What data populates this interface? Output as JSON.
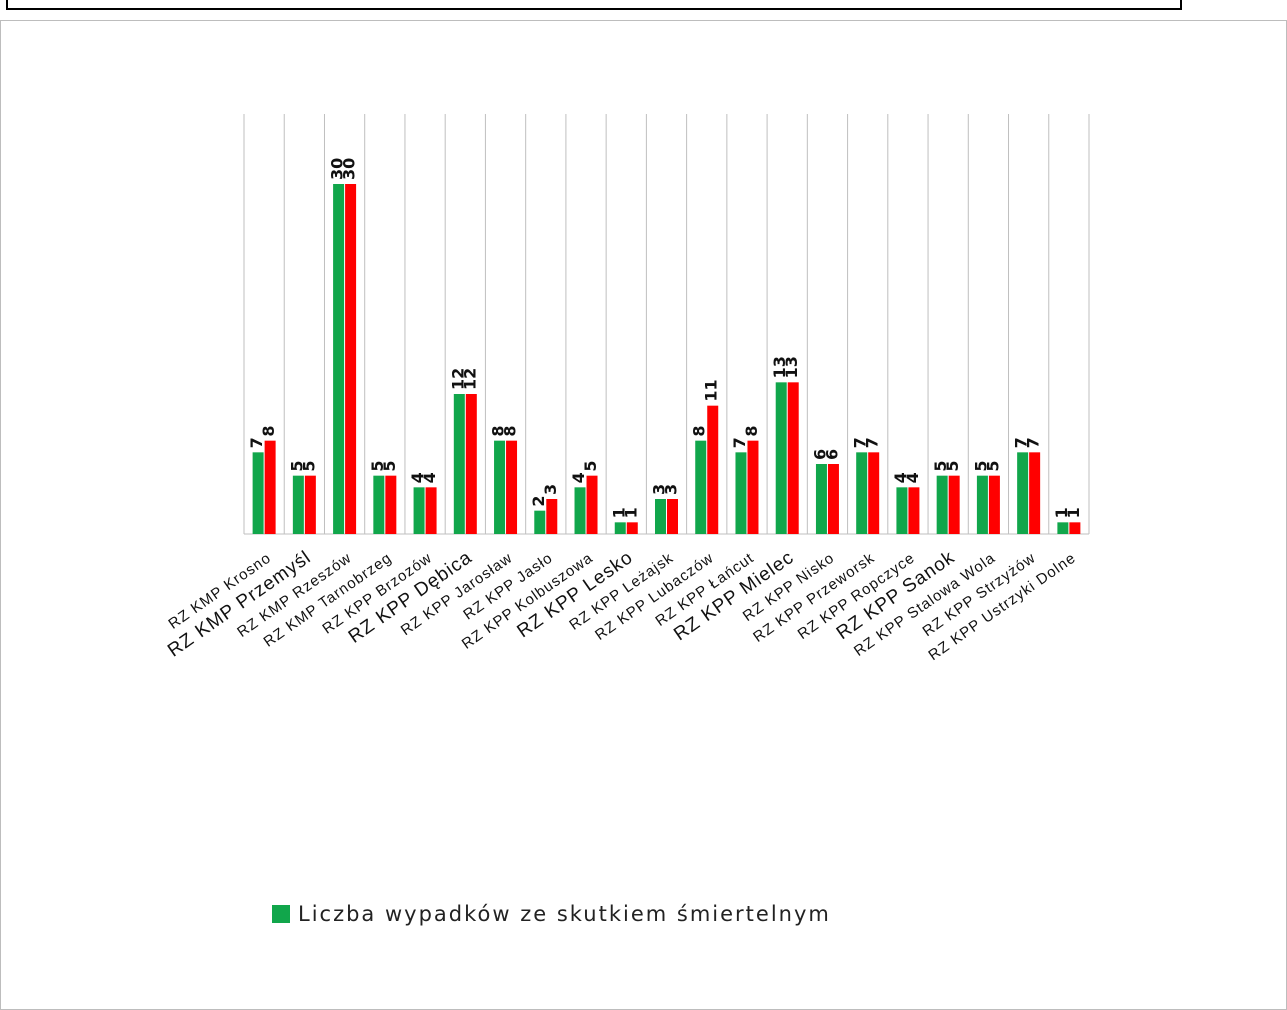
{
  "colors": {
    "series1": "#11a64b",
    "series2": "#ff0000",
    "grid": "#bfbfbf",
    "text": "#111111"
  },
  "chart_data": {
    "type": "bar",
    "title": "",
    "categories": [
      "RZ KMP Krosno",
      "RZ KMP Przemyśl",
      "RZ KMP Rzeszów",
      "RZ KMP Tarnobrzeg",
      "RZ KPP Brzozów",
      "RZ KPP Dębica",
      "RZ KPP Jarosław",
      "RZ KPP Jasło",
      "RZ KPP Kolbuszowa",
      "RZ KPP Lesko",
      "RZ KPP Leżajsk",
      "RZ KPP Lubaczów",
      "RZ KPP Łańcut",
      "RZ KPP Mielec",
      "RZ KPP Nisko",
      "RZ KPP Przeworsk",
      "RZ KPP Ropczyce",
      "RZ KPP Sanok",
      "RZ KPP Stalowa Wola",
      "RZ KPP Strzyżów",
      "RZ KPP Ustrzyki Dolne"
    ],
    "series": [
      {
        "name": "Liczba wypadków ze skutkiem śmiertelnym",
        "values": [
          7,
          5,
          30,
          5,
          4,
          12,
          8,
          2,
          4,
          1,
          3,
          8,
          7,
          13,
          6,
          7,
          4,
          5,
          5,
          7,
          1
        ]
      },
      {
        "name": "",
        "values": [
          8,
          5,
          30,
          5,
          4,
          12,
          8,
          3,
          5,
          1,
          3,
          11,
          8,
          13,
          6,
          7,
          4,
          5,
          5,
          7,
          1
        ]
      }
    ],
    "ylim": [
      0,
      36
    ],
    "grid": true,
    "legend": "bottom"
  }
}
